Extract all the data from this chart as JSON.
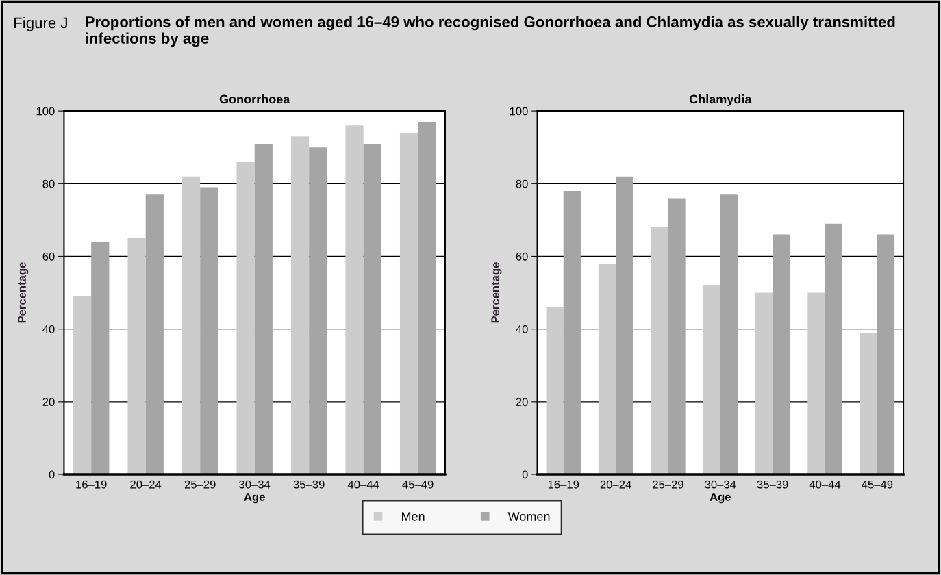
{
  "chart_data": [
    {
      "type": "bar",
      "title": "Gonorrhoea",
      "xlabel": "Age",
      "ylabel": "Percentage",
      "annotations": [
        "Figure J",
        "Proportions of men and women aged 16–49 who recognised Gonorrhoea and Chlamydia as sexually transmitted infections by age"
      ],
      "categories": [
        "16–19",
        "20–24",
        "25–29",
        "30–34",
        "35–39",
        "40–44",
        "45–49"
      ],
      "series": [
        {
          "name": "Men",
          "color": "#cccccc",
          "values": [
            49,
            65,
            82,
            86,
            93,
            96,
            94
          ]
        },
        {
          "name": "Women",
          "color": "#a5a5a5",
          "values": [
            64,
            77,
            79,
            91,
            90,
            91,
            97
          ]
        }
      ],
      "ylim": [
        0,
        100
      ],
      "yticks": [
        0,
        20,
        40,
        60,
        80,
        100
      ],
      "grid": "y",
      "legend": "bottom"
    },
    {
      "type": "bar",
      "title": "Chlamydia",
      "xlabel": "Age",
      "ylabel": "Percentage",
      "categories": [
        "16–19",
        "20–24",
        "25–29",
        "30–34",
        "35–39",
        "40–44",
        "45–49"
      ],
      "series": [
        {
          "color": "#cccccc",
          "values": [
            46,
            58,
            68,
            52,
            50,
            50,
            39
          ]
        },
        {
          "color": "#a5a5a5",
          "values": [
            78,
            82,
            76,
            77,
            66,
            69,
            66
          ]
        }
      ],
      "ylim": [
        0,
        100
      ],
      "yticks": [
        0,
        20,
        40,
        60,
        80,
        100
      ],
      "grid": "y"
    }
  ]
}
